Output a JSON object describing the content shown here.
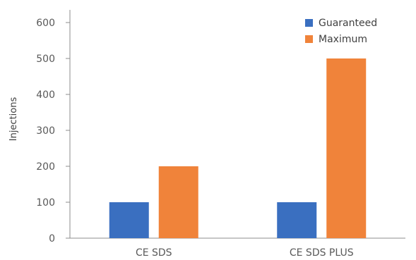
{
  "chart_data": {
    "type": "bar",
    "categories": [
      "CE SDS",
      "CE SDS PLUS"
    ],
    "series": [
      {
        "name": "Guaranteed",
        "color": "#3a6fc0",
        "values": [
          100,
          100
        ]
      },
      {
        "name": "Maximum",
        "color": "#f0833a",
        "values": [
          200,
          500
        ]
      }
    ],
    "ylabel": "Injections",
    "ylim": [
      0,
      600
    ],
    "yticks": [
      0,
      100,
      200,
      300,
      400,
      500,
      600
    ],
    "legend_position": "top-right",
    "grid": false
  }
}
